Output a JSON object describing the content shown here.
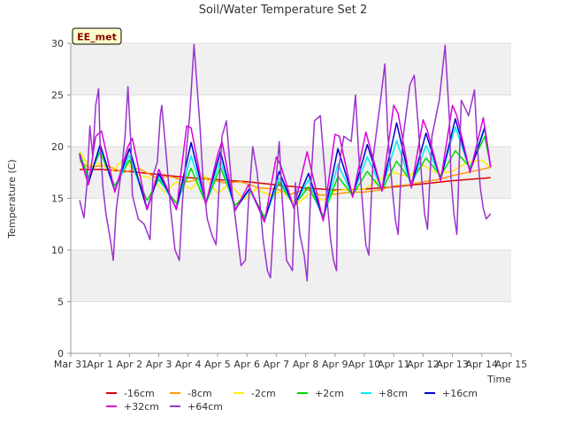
{
  "chart_data": {
    "type": "line",
    "title": "Soil/Water Temperature Set 2",
    "xlabel": "Time",
    "ylabel": "Temperature (C)",
    "badge": "EE_met",
    "xlim": [
      0,
      15
    ],
    "ylim": [
      0,
      30
    ],
    "x_ticks": [
      {
        "v": 0,
        "label": "Mar 31"
      },
      {
        "v": 1,
        "label": "Apr 1"
      },
      {
        "v": 2,
        "label": "Apr 2"
      },
      {
        "v": 3,
        "label": "Apr 3"
      },
      {
        "v": 4,
        "label": "Apr 4"
      },
      {
        "v": 5,
        "label": "Apr 5"
      },
      {
        "v": 6,
        "label": "Apr 6"
      },
      {
        "v": 7,
        "label": "Apr 7"
      },
      {
        "v": 8,
        "label": "Apr 8"
      },
      {
        "v": 9,
        "label": "Apr 9"
      },
      {
        "v": 10,
        "label": "Apr 10"
      },
      {
        "v": 11,
        "label": "Apr 11"
      },
      {
        "v": 12,
        "label": "Apr 12"
      },
      {
        "v": 13,
        "label": "Apr 13"
      },
      {
        "v": 14,
        "label": "Apr 14"
      },
      {
        "v": 15,
        "label": "Apr 15"
      }
    ],
    "y_ticks": [
      0,
      5,
      10,
      15,
      20,
      25,
      30
    ],
    "grid": "horizontal bands",
    "legend_position": "bottom",
    "series": [
      {
        "name": "-16cm",
        "color": "#dd0000",
        "x": [
          0.3,
          1,
          2,
          3,
          4,
          5,
          6,
          7,
          8,
          9,
          10,
          11,
          12,
          13,
          14.3
        ],
        "y": [
          17.8,
          17.8,
          17.6,
          17.3,
          17.0,
          16.8,
          16.6,
          16.3,
          16.0,
          15.8,
          15.9,
          16.1,
          16.4,
          16.7,
          17.0
        ]
      },
      {
        "name": "-8cm",
        "color": "#ff9900",
        "x": [
          0.3,
          0.6,
          1.2,
          1.8,
          2.3,
          2.9,
          3.4,
          4.0,
          4.6,
          5.2,
          5.8,
          6.4,
          7.0,
          7.5,
          8.0,
          8.5,
          9.0,
          9.5,
          10.0,
          10.5,
          11.0,
          11.5,
          12.0,
          12.5,
          13.0,
          13.5,
          14.0,
          14.3
        ],
        "y": [
          18.6,
          18.0,
          18.2,
          17.5,
          17.9,
          17.0,
          17.1,
          16.6,
          17.0,
          16.5,
          16.6,
          16.0,
          15.9,
          15.4,
          15.9,
          15.3,
          15.4,
          15.6,
          15.6,
          15.8,
          16.2,
          16.3,
          16.6,
          16.8,
          17.2,
          17.5,
          17.8,
          18.0
        ]
      },
      {
        "name": "-2cm",
        "color": "#ffee00",
        "x": [
          0.3,
          0.6,
          1.0,
          1.4,
          1.8,
          2.3,
          2.7,
          3.2,
          3.6,
          4.1,
          4.5,
          5.0,
          5.4,
          5.9,
          6.3,
          6.8,
          7.2,
          7.7,
          8.1,
          8.6,
          9.0,
          9.5,
          10.0,
          10.5,
          11.0,
          11.5,
          12.0,
          12.5,
          13.0,
          13.5,
          14.0,
          14.3
        ],
        "y": [
          19.5,
          18.2,
          18.4,
          17.6,
          18.8,
          17.2,
          17.0,
          15.6,
          16.6,
          15.9,
          17.3,
          15.5,
          16.4,
          14.9,
          15.9,
          15.3,
          15.7,
          14.4,
          15.4,
          14.8,
          15.7,
          15.9,
          15.9,
          16.8,
          17.5,
          17.1,
          18.2,
          17.4,
          17.6,
          18.5,
          18.7,
          18.0
        ]
      },
      {
        "name": "+2cm",
        "color": "#00dd00",
        "x": [
          0.3,
          0.6,
          1.0,
          1.5,
          2.0,
          2.6,
          3.0,
          3.6,
          4.1,
          4.6,
          5.1,
          5.6,
          6.1,
          6.6,
          7.1,
          7.6,
          8.1,
          8.6,
          9.1,
          9.6,
          10.1,
          10.6,
          11.1,
          11.6,
          12.1,
          12.6,
          13.1,
          13.6,
          14.1,
          14.3
        ],
        "y": [
          19.4,
          17.0,
          19.5,
          16.2,
          18.7,
          14.8,
          16.8,
          14.5,
          17.9,
          14.5,
          18.0,
          14.3,
          15.8,
          13.2,
          16.6,
          14.3,
          16.1,
          13.3,
          17.1,
          15.3,
          17.6,
          15.8,
          18.6,
          16.6,
          18.9,
          17.2,
          19.6,
          18.0,
          21.0,
          18.1
        ]
      },
      {
        "name": "+8cm",
        "color": "#00eeee",
        "x": [
          0.3,
          0.6,
          1.0,
          1.5,
          2.0,
          2.6,
          3.0,
          3.6,
          4.1,
          4.6,
          5.1,
          5.6,
          6.1,
          6.6,
          7.1,
          7.6,
          8.1,
          8.6,
          9.1,
          9.6,
          10.1,
          10.6,
          11.1,
          11.6,
          12.1,
          12.6,
          13.1,
          13.6,
          14.1,
          14.3
        ],
        "y": [
          19.0,
          16.6,
          20.0,
          15.8,
          19.2,
          14.1,
          17.1,
          14.0,
          19.1,
          14.6,
          18.7,
          14.0,
          15.8,
          12.9,
          17.0,
          14.2,
          16.8,
          13.0,
          18.3,
          15.3,
          19.0,
          15.9,
          20.6,
          16.2,
          20.1,
          17.0,
          21.9,
          17.7,
          22.0,
          18.0
        ]
      },
      {
        "name": "+16cm",
        "color": "#0000cc",
        "x": [
          0.3,
          0.6,
          1.0,
          1.5,
          2.0,
          2.6,
          3.0,
          3.6,
          4.1,
          4.6,
          5.1,
          5.6,
          6.1,
          6.6,
          7.1,
          7.6,
          8.1,
          8.6,
          9.1,
          9.6,
          10.1,
          10.6,
          11.1,
          11.6,
          12.1,
          12.6,
          13.1,
          13.6,
          14.1,
          14.3
        ],
        "y": [
          19.2,
          16.4,
          20.2,
          15.7,
          19.8,
          13.9,
          17.4,
          14.0,
          20.4,
          14.5,
          19.5,
          13.9,
          16.0,
          12.8,
          17.6,
          14.1,
          17.4,
          12.9,
          19.8,
          15.2,
          20.2,
          15.8,
          22.3,
          16.1,
          21.3,
          16.8,
          22.7,
          17.6,
          21.8,
          18.0
        ]
      },
      {
        "name": "+32cm",
        "color": "#dd00dd",
        "x": [
          0.3,
          0.6,
          0.85,
          1.05,
          1.5,
          1.95,
          2.1,
          2.6,
          3.0,
          3.6,
          3.95,
          4.1,
          4.6,
          5.0,
          5.15,
          5.6,
          6.05,
          6.6,
          7.0,
          7.15,
          7.6,
          8.05,
          8.6,
          9.0,
          9.15,
          9.6,
          10.05,
          10.6,
          11.0,
          11.15,
          11.6,
          12.0,
          12.15,
          12.6,
          13.0,
          13.15,
          13.6,
          14.05,
          14.3
        ],
        "y": [
          19.3,
          16.3,
          21.0,
          21.5,
          15.6,
          20.0,
          20.8,
          13.9,
          17.8,
          13.9,
          22.0,
          21.8,
          14.4,
          19.2,
          20.5,
          13.8,
          16.3,
          12.7,
          19.0,
          18.2,
          14.0,
          19.5,
          12.8,
          21.2,
          21.0,
          15.1,
          21.4,
          15.7,
          24.0,
          23.2,
          16.0,
          22.6,
          21.5,
          16.7,
          24.0,
          23.0,
          17.5,
          22.8,
          18.0
        ]
      },
      {
        "name": "+64cm",
        "color": "#9933cc",
        "x": [
          0.3,
          0.45,
          0.55,
          0.65,
          0.75,
          0.85,
          0.95,
          1.0,
          1.1,
          1.2,
          1.35,
          1.45,
          1.55,
          1.75,
          1.85,
          1.95,
          2.05,
          2.1,
          2.3,
          2.5,
          2.7,
          2.8,
          2.95,
          3.05,
          3.1,
          3.25,
          3.4,
          3.55,
          3.7,
          3.8,
          3.95,
          4.05,
          4.2,
          4.4,
          4.5,
          4.65,
          4.8,
          4.95,
          5.05,
          5.15,
          5.3,
          5.5,
          5.65,
          5.8,
          5.95,
          6.05,
          6.2,
          6.35,
          6.55,
          6.7,
          6.8,
          7.0,
          7.1,
          7.2,
          7.35,
          7.55,
          7.65,
          7.8,
          7.95,
          8.05,
          8.2,
          8.3,
          8.5,
          8.7,
          8.85,
          8.95,
          9.05,
          9.1,
          9.3,
          9.55,
          9.7,
          9.8,
          9.95,
          10.05,
          10.15,
          10.3,
          10.55,
          10.7,
          10.8,
          10.95,
          11.05,
          11.15,
          11.3,
          11.55,
          11.7,
          11.85,
          11.95,
          12.05,
          12.15,
          12.3,
          12.55,
          12.75,
          12.9,
          12.95,
          13.05,
          13.15,
          13.3,
          13.55,
          13.75,
          13.85,
          13.95,
          14.05,
          14.15,
          14.3
        ],
        "y": [
          14.8,
          13.1,
          16.3,
          22.0,
          19.0,
          24.0,
          25.6,
          20.3,
          16.0,
          13.5,
          11.0,
          9.0,
          14.0,
          18.2,
          21.0,
          25.8,
          20.0,
          15.3,
          13.0,
          12.5,
          11.0,
          17.2,
          18.5,
          23.0,
          24.0,
          19.3,
          14.0,
          10.0,
          9.0,
          14.5,
          20.0,
          23.0,
          29.9,
          22.0,
          17.0,
          13.0,
          11.5,
          10.5,
          16.0,
          21.0,
          22.5,
          15.5,
          12.0,
          8.5,
          9.0,
          14.5,
          20.0,
          17.5,
          11.0,
          8.0,
          7.3,
          17.0,
          20.5,
          15.0,
          9.0,
          8.0,
          16.5,
          11.5,
          9.5,
          7.0,
          17.5,
          22.5,
          23.0,
          16.0,
          11.0,
          9.0,
          8.0,
          17.5,
          21.0,
          20.5,
          25.0,
          19.5,
          14.0,
          10.5,
          9.5,
          19.0,
          24.5,
          28.0,
          21.0,
          16.0,
          13.0,
          11.5,
          20.5,
          26.0,
          26.9,
          21.5,
          17.0,
          13.5,
          12.0,
          21.0,
          24.5,
          29.8,
          22.5,
          17.0,
          13.5,
          11.5,
          24.5,
          23.0,
          25.5,
          20.0,
          16.0,
          14.0,
          13.0,
          13.5
        ]
      }
    ]
  }
}
